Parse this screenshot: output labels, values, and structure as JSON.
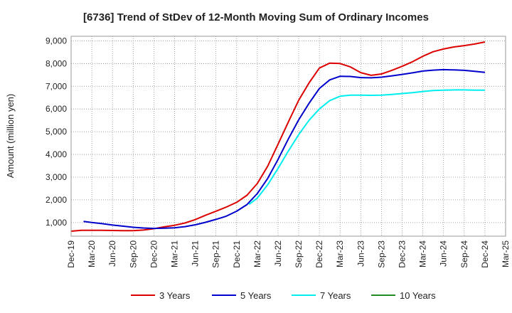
{
  "chart_data": {
    "type": "line",
    "title": "[6736]  Trend of StDev of 12-Month Moving Sum of Ordinary Incomes",
    "xlabel": "",
    "ylabel": "Amount (million yen)",
    "ylim": [
      400,
      9200
    ],
    "yticks": [
      1000,
      2000,
      3000,
      4000,
      5000,
      6000,
      7000,
      8000,
      9000
    ],
    "ytick_labels": [
      "1,000",
      "2,000",
      "3,000",
      "4,000",
      "5,000",
      "6,000",
      "7,000",
      "8,000",
      "9,000"
    ],
    "xticks": [
      "Dec-19",
      "Mar-20",
      "Jun-20",
      "Sep-20",
      "Dec-20",
      "Mar-21",
      "Jun-21",
      "Sep-21",
      "Dec-21",
      "Mar-22",
      "Jun-22",
      "Sep-22",
      "Dec-22",
      "Mar-23",
      "Jun-23",
      "Sep-23",
      "Dec-23",
      "Mar-24",
      "Jun-24",
      "Sep-24",
      "Dec-24",
      "Mar-25"
    ],
    "grid": true,
    "legend_position": "bottom",
    "series": [
      {
        "name": "3 Years",
        "color": "#dd0000",
        "points": [
          [
            0,
            620
          ],
          [
            0.5,
            660
          ],
          [
            1,
            660
          ],
          [
            1.5,
            660
          ],
          [
            2,
            650
          ],
          [
            2.5,
            640
          ],
          [
            3,
            640
          ],
          [
            3.5,
            670
          ],
          [
            4,
            730
          ],
          [
            4.5,
            810
          ],
          [
            5,
            880
          ],
          [
            5.5,
            980
          ],
          [
            6,
            1130
          ],
          [
            6.5,
            1320
          ],
          [
            7,
            1500
          ],
          [
            7.5,
            1680
          ],
          [
            8,
            1890
          ],
          [
            8.5,
            2200
          ],
          [
            9,
            2720
          ],
          [
            9.5,
            3480
          ],
          [
            10,
            4450
          ],
          [
            10.5,
            5430
          ],
          [
            11,
            6380
          ],
          [
            11.5,
            7150
          ],
          [
            12,
            7800
          ],
          [
            12.5,
            8020
          ],
          [
            13,
            8000
          ],
          [
            13.5,
            7850
          ],
          [
            14,
            7600
          ],
          [
            14.5,
            7480
          ],
          [
            15,
            7540
          ],
          [
            15.5,
            7700
          ],
          [
            16,
            7880
          ],
          [
            16.5,
            8080
          ],
          [
            17,
            8320
          ],
          [
            17.5,
            8520
          ],
          [
            18,
            8640
          ],
          [
            18.5,
            8730
          ],
          [
            19,
            8790
          ],
          [
            19.5,
            8860
          ],
          [
            20,
            8950
          ]
        ]
      },
      {
        "name": "5 Years",
        "color": "#0000cc",
        "points": [
          [
            0.6,
            1050
          ],
          [
            1,
            1000
          ],
          [
            1.5,
            950
          ],
          [
            2,
            890
          ],
          [
            2.5,
            840
          ],
          [
            3,
            790
          ],
          [
            3.5,
            760
          ],
          [
            4,
            740
          ],
          [
            4.5,
            750
          ],
          [
            5,
            770
          ],
          [
            5.5,
            820
          ],
          [
            6,
            900
          ],
          [
            6.5,
            1010
          ],
          [
            7,
            1140
          ],
          [
            7.5,
            1280
          ],
          [
            8,
            1500
          ],
          [
            8.5,
            1790
          ],
          [
            9,
            2280
          ],
          [
            9.5,
            2940
          ],
          [
            10,
            3780
          ],
          [
            10.5,
            4680
          ],
          [
            11,
            5520
          ],
          [
            11.5,
            6250
          ],
          [
            12,
            6900
          ],
          [
            12.5,
            7280
          ],
          [
            13,
            7440
          ],
          [
            13.5,
            7430
          ],
          [
            14,
            7380
          ],
          [
            14.5,
            7370
          ],
          [
            15,
            7400
          ],
          [
            15.5,
            7460
          ],
          [
            16,
            7520
          ],
          [
            16.5,
            7590
          ],
          [
            17,
            7670
          ],
          [
            17.5,
            7710
          ],
          [
            18,
            7730
          ],
          [
            18.5,
            7720
          ],
          [
            19,
            7700
          ],
          [
            19.5,
            7660
          ],
          [
            20,
            7610
          ]
        ]
      },
      {
        "name": "7 Years",
        "color": "#00eeee",
        "points": [
          [
            8.6,
            1800
          ],
          [
            9,
            2080
          ],
          [
            9.5,
            2660
          ],
          [
            10,
            3380
          ],
          [
            10.5,
            4150
          ],
          [
            11,
            4870
          ],
          [
            11.5,
            5500
          ],
          [
            12,
            6000
          ],
          [
            12.5,
            6370
          ],
          [
            13,
            6560
          ],
          [
            13.5,
            6610
          ],
          [
            14,
            6610
          ],
          [
            14.5,
            6600
          ],
          [
            15,
            6610
          ],
          [
            15.5,
            6640
          ],
          [
            16,
            6680
          ],
          [
            16.5,
            6720
          ],
          [
            17,
            6770
          ],
          [
            17.5,
            6810
          ],
          [
            18,
            6830
          ],
          [
            18.5,
            6840
          ],
          [
            19,
            6840
          ],
          [
            19.5,
            6830
          ],
          [
            20,
            6830
          ]
        ]
      },
      {
        "name": "10 Years",
        "color": "#228b22",
        "points": []
      }
    ]
  }
}
